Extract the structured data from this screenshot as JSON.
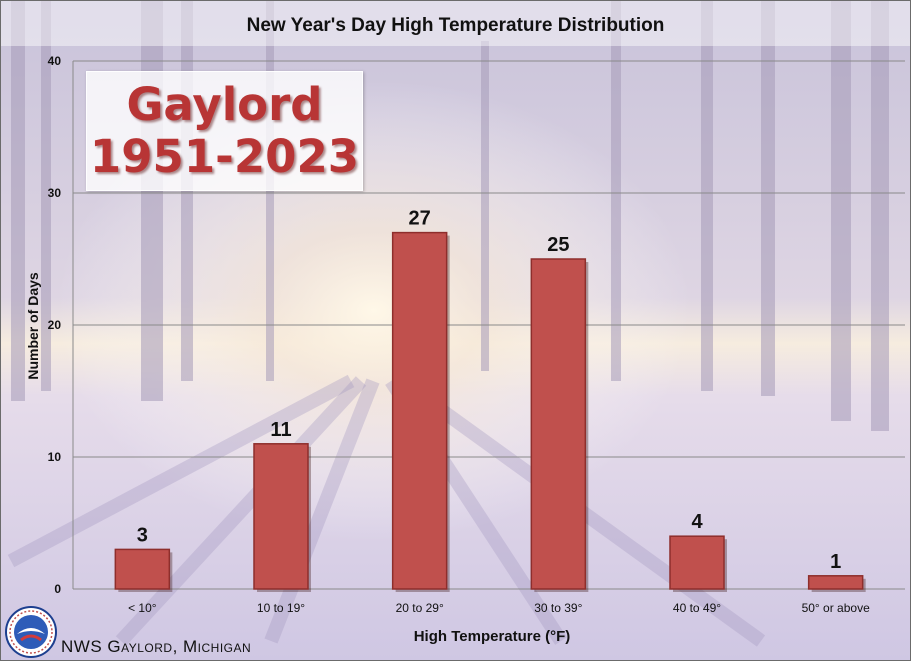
{
  "footer": {
    "text": "NWS Gaylord, Michigan"
  },
  "stamp": {
    "city": "Gaylord",
    "years": "1951-2023"
  },
  "logo": {
    "icon": "nws-logo-icon",
    "ring_text": "NATIONAL WEATHER SERVICE"
  },
  "colors": {
    "bar": "#c0504d",
    "bar_dark": "#8e2e2c",
    "grid": "#8a8a8a",
    "stamp_text": "#b83535"
  },
  "chart_data": {
    "type": "bar",
    "title": "New Year's Day High Temperature Distribution",
    "xlabel": "High Temperature (°F)",
    "ylabel": "Number of Days",
    "categories": [
      "< 10°",
      "10 to 19°",
      "20 to 29°",
      "30 to 39°",
      "40 to 49°",
      "50° or above"
    ],
    "values": [
      3,
      11,
      27,
      25,
      4,
      1
    ],
    "ylim": [
      0,
      40
    ],
    "yticks": [
      0,
      10,
      20,
      30,
      40
    ],
    "grid": true,
    "data_labels": true
  }
}
